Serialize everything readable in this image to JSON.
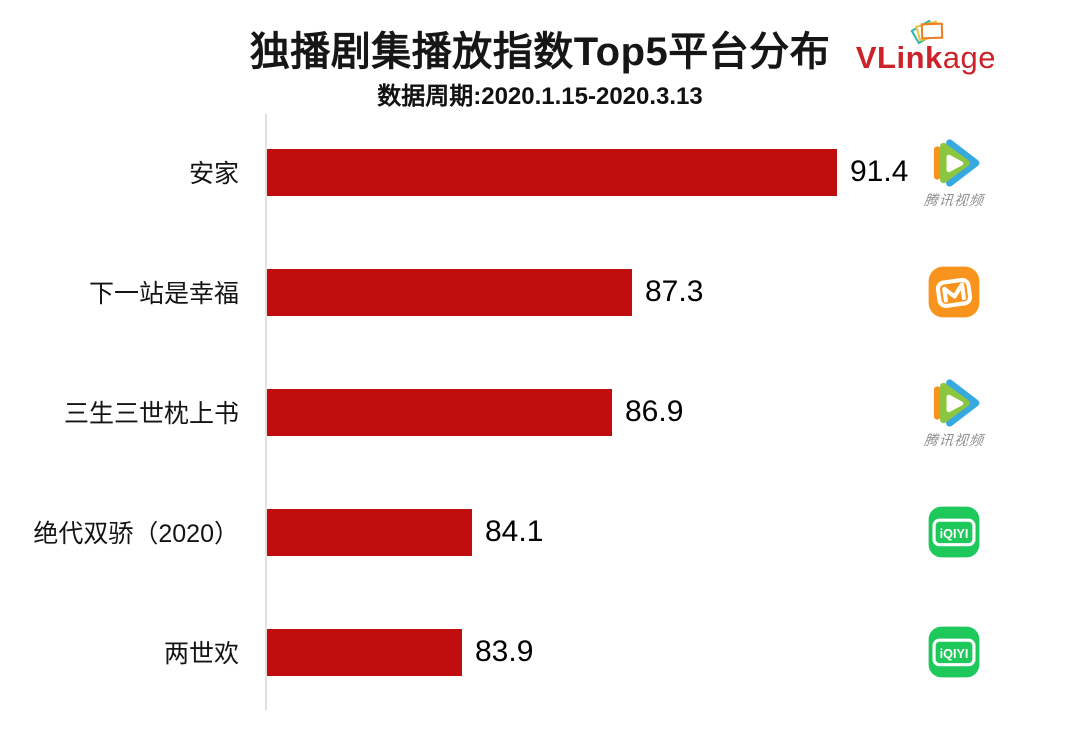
{
  "header": {
    "title": "独播剧集播放指数Top5平台分布",
    "subtitle": "数据周期:2020.1.15-2020.3.13",
    "logo": {
      "bold": "VLink",
      "light": "age",
      "name": "VLinkage"
    }
  },
  "chart_data": {
    "type": "bar",
    "orientation": "horizontal",
    "title": "独播剧集播放指数Top5平台分布",
    "subtitle": "数据周期:2020.1.15-2020.3.13",
    "categories": [
      "安家",
      "下一站是幸福",
      "三生三世枕上书",
      "绝代双骄（2020）",
      "两世欢"
    ],
    "values": [
      91.4,
      87.3,
      86.9,
      84.1,
      83.9
    ],
    "platforms": [
      "腾讯视频",
      "芒果TV",
      "腾讯视频",
      "爱奇艺",
      "爱奇艺"
    ],
    "xlim": [
      80,
      95.5
    ],
    "bar_color": "#C00D0D",
    "grid": false,
    "legend": "none",
    "value_labels": true
  },
  "rows": [
    {
      "label": "安家",
      "value": 91.4,
      "value_label": "91.4",
      "icon": "tencent",
      "icon_name": "tencent-video-icon",
      "icon_caption": "腾讯视频"
    },
    {
      "label": "下一站是幸福",
      "value": 87.3,
      "value_label": "87.3",
      "icon": "mango",
      "icon_name": "mango-tv-icon",
      "icon_caption": ""
    },
    {
      "label": "三生三世枕上书",
      "value": 86.9,
      "value_label": "86.9",
      "icon": "tencent",
      "icon_name": "tencent-video-icon",
      "icon_caption": "腾讯视频"
    },
    {
      "label": "绝代双骄（2020）",
      "value": 84.1,
      "value_label": "84.1",
      "icon": "iqiyi",
      "icon_name": "iqiyi-icon",
      "icon_caption": ""
    },
    {
      "label": "两世欢",
      "value": 83.9,
      "value_label": "83.9",
      "icon": "iqiyi",
      "icon_name": "iqiyi-icon",
      "icon_caption": ""
    }
  ],
  "iqiyi_text": "iQIYI",
  "colors": {
    "bar": "#C00D0D",
    "axis": "#E0E0E0",
    "title": "#161616",
    "logo_red": "#CC2229",
    "tencent_blue": "#36A9E1",
    "tencent_green": "#8CC63F",
    "tencent_orange": "#F7941D",
    "mango_orange": "#F8941D",
    "iqiyi_green": "#1EC85A",
    "caption_gray": "#8F8F8F"
  }
}
